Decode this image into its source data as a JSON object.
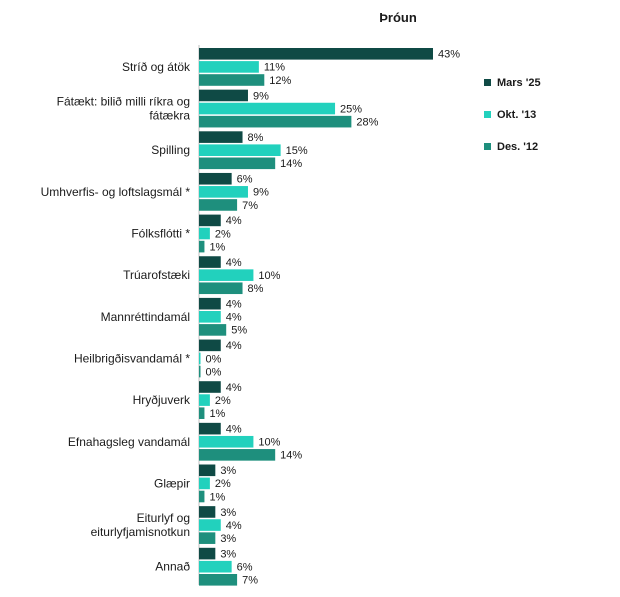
{
  "chart_data": {
    "type": "bar",
    "orientation": "horizontal",
    "title": "Þróun",
    "xlabel": "",
    "ylabel": "",
    "value_suffix": "%",
    "xlim": [
      0,
      43
    ],
    "grid": false,
    "legend_position": "right",
    "categories": [
      [
        "Stríð og átök"
      ],
      [
        "Fátækt: bilið milli ríkra og",
        "fátækra"
      ],
      [
        "Spilling"
      ],
      [
        "Umhverfis- og loftslagsmál *"
      ],
      [
        "Fólksflótti *"
      ],
      [
        "Trúarofstæki"
      ],
      [
        "Mannréttindamál"
      ],
      [
        "Heilbrigðisvandamál *"
      ],
      [
        "Hryðjuverk"
      ],
      [
        "Efnahagsleg vandamál"
      ],
      [
        "Glæpir"
      ],
      [
        "Eiturlyf og",
        "eiturlyfjamisnotkun"
      ],
      [
        "Annað"
      ]
    ],
    "series": [
      {
        "name": "Mars '25",
        "color": "#0f4a45",
        "values": [
          43,
          9,
          8,
          6,
          4,
          4,
          4,
          4,
          4,
          4,
          3,
          3,
          3
        ]
      },
      {
        "name": "Okt. '13",
        "color": "#22d1bd",
        "values": [
          11,
          25,
          15,
          9,
          2,
          10,
          4,
          0,
          2,
          10,
          2,
          4,
          6
        ]
      },
      {
        "name": "Des. '12",
        "color": "#1e8f7d",
        "values": [
          12,
          28,
          14,
          7,
          1,
          8,
          5,
          0,
          1,
          14,
          1,
          3,
          7
        ]
      }
    ]
  }
}
